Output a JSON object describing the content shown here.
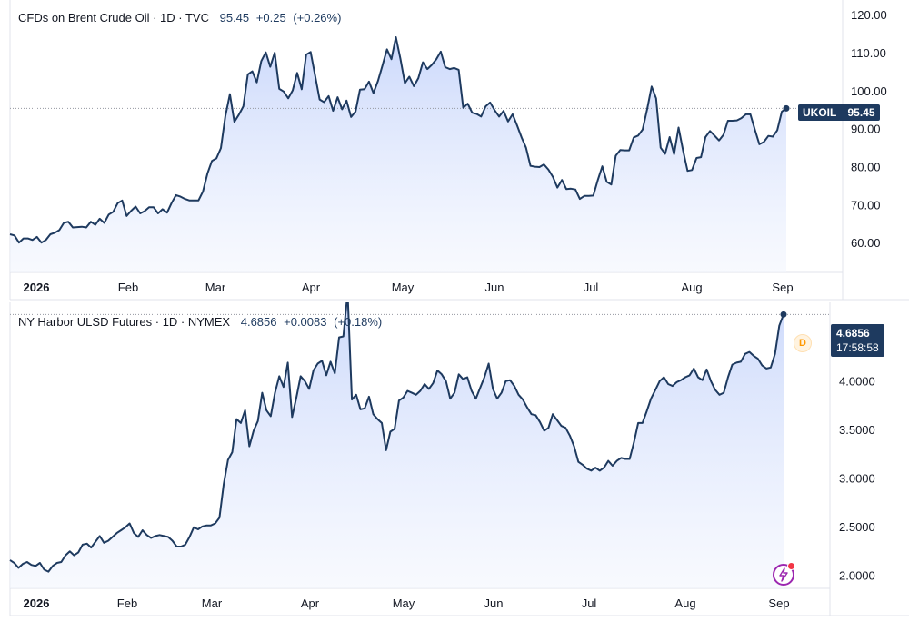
{
  "colors": {
    "line": "#1e3a5f",
    "fill_top": "#c9d7fb",
    "fill_bottom": "#f3f6fe",
    "axis_text": "#131722",
    "border": "#e0e3eb",
    "dotted": "#9598a1",
    "d_badge": "#ff9800",
    "bolt": "#9c27b0"
  },
  "pane1": {
    "legend": {
      "symbol": "CFDs on Brent Crude Oil · 1D · TVC",
      "value": "95.45",
      "change": "+0.25",
      "percent": "(+0.26%)"
    },
    "badge_label": "UKOIL",
    "badge_value": "95.45",
    "chart_data": {
      "type": "area",
      "title": "CFDs on Brent Crude Oil · 1D · TVC",
      "x_ticks": [
        "2026",
        "Feb",
        "Mar",
        "Apr",
        "May",
        "Jun",
        "Jul",
        "Aug",
        "Sep"
      ],
      "y_ticks": [
        "60.00",
        "70.00",
        "80.00",
        "90.00",
        "100.00",
        "110.00",
        "120.00"
      ],
      "ylim": [
        52.5,
        124
      ],
      "last_value": 95.45,
      "series": [
        {
          "values": [
            62.3,
            62.0,
            60.1,
            61.2,
            61.2,
            60.8,
            61.6,
            60.1,
            60.8,
            62.3,
            62.7,
            63.4,
            65.3,
            65.6,
            64.1,
            64.2,
            64.3,
            64.1,
            65.6,
            64.8,
            66.4,
            65.3,
            67.5,
            68.2,
            70.5,
            71.2,
            67.1,
            68.5,
            69.6,
            67.8,
            68.4,
            69.4,
            69.4,
            67.8,
            68.9,
            68.0,
            70.5,
            72.6,
            72.2,
            71.6,
            71.2,
            71.2,
            71.2,
            73.6,
            78.3,
            81.6,
            82.3,
            85.0,
            93.4,
            99.2,
            91.9,
            93.8,
            96.0,
            104.4,
            105.2,
            102.3,
            107.9,
            110.2,
            106.4,
            110.1,
            100.6,
            99.9,
            98.1,
            100.2,
            104.8,
            100.5,
            109.6,
            110.3,
            104.0,
            97.8,
            97.1,
            98.7,
            94.8,
            98.4,
            95.2,
            97.5,
            93.2,
            94.6,
            100.4,
            100.5,
            102.5,
            99.5,
            102.7,
            106.7,
            111.0,
            108.4,
            114.2,
            108.5,
            102.1,
            103.8,
            101.3,
            103.4,
            107.6,
            105.8,
            106.9,
            108.4,
            110.4,
            106.3,
            105.8,
            106.1,
            105.6,
            95.6,
            96.7,
            94.3,
            94.0,
            93.3,
            96.0,
            97.0,
            95.0,
            93.3,
            94.8,
            92.0,
            93.9,
            91.0,
            87.8,
            85.1,
            80.3,
            80.1,
            80.0,
            80.7,
            79.3,
            77.4,
            74.6,
            76.6,
            74.2,
            74.3,
            74.1,
            71.6,
            72.4,
            72.4,
            72.5,
            76.6,
            80.2,
            76.1,
            75.4,
            83.0,
            84.5,
            84.4,
            84.4,
            87.8,
            88.3,
            89.9,
            95.3,
            101.2,
            98.1,
            85.1,
            83.5,
            87.9,
            83.4,
            90.4,
            84.3,
            79.0,
            79.2,
            82.4,
            82.6,
            87.9,
            89.5,
            88.3,
            87.0,
            88.5,
            92.2,
            92.2,
            92.3,
            92.9,
            93.9,
            93.9,
            89.9,
            86.0,
            86.6,
            88.2,
            88.0,
            89.7,
            94.6,
            95.45
          ]
        }
      ]
    }
  },
  "pane2": {
    "legend": {
      "symbol": "NY Harbor ULSD Futures · 1D · NYMEX",
      "value": "4.6856",
      "change": "+0.0083",
      "percent": "(+0.18%)"
    },
    "badge_value": "4.6856",
    "badge_time": "17:58:58",
    "d_label": "D",
    "chart_data": {
      "type": "area",
      "title": "NY Harbor ULSD Futures · 1D · NYMEX",
      "x_ticks": [
        "2026",
        "Feb",
        "Mar",
        "Apr",
        "May",
        "Jun",
        "Jul",
        "Aug",
        "Sep"
      ],
      "y_ticks": [
        "2.0000",
        "2.5000",
        "3.0000",
        "3.5000",
        "4.0000"
      ],
      "ylim": [
        1.87,
        4.81
      ],
      "last_value": 4.6856,
      "series": [
        {
          "values": [
            2.16,
            2.13,
            2.081,
            2.121,
            2.141,
            2.111,
            2.101,
            2.131,
            2.062,
            2.042,
            2.101,
            2.131,
            2.141,
            2.21,
            2.25,
            2.21,
            2.24,
            2.319,
            2.329,
            2.289,
            2.349,
            2.408,
            2.339,
            2.359,
            2.398,
            2.438,
            2.467,
            2.497,
            2.537,
            2.438,
            2.398,
            2.467,
            2.418,
            2.388,
            2.408,
            2.418,
            2.408,
            2.398,
            2.359,
            2.299,
            2.299,
            2.319,
            2.398,
            2.497,
            2.477,
            2.507,
            2.517,
            2.517,
            2.537,
            2.596,
            2.941,
            3.19,
            3.27,
            3.61,
            3.57,
            3.7,
            3.33,
            3.49,
            3.59,
            3.88,
            3.7,
            3.64,
            3.88,
            4.05,
            3.94,
            4.19,
            3.63,
            3.83,
            4.05,
            4.0,
            3.92,
            4.11,
            4.18,
            4.21,
            4.06,
            4.2,
            4.08,
            4.45,
            4.46,
            4.91,
            3.81,
            3.86,
            3.71,
            3.72,
            3.84,
            3.66,
            3.61,
            3.57,
            3.29,
            3.48,
            3.51,
            3.8,
            3.83,
            3.9,
            3.88,
            3.86,
            3.9,
            3.97,
            3.92,
            3.98,
            4.11,
            4.07,
            4.0,
            3.82,
            3.88,
            4.07,
            4.02,
            4.04,
            3.9,
            3.82,
            3.93,
            4.04,
            4.18,
            3.92,
            3.82,
            3.88,
            4.0,
            4.01,
            3.95,
            3.86,
            3.81,
            3.73,
            3.66,
            3.65,
            3.58,
            3.49,
            3.52,
            3.66,
            3.6,
            3.54,
            3.52,
            3.44,
            3.33,
            3.17,
            3.14,
            3.1,
            3.08,
            3.11,
            3.08,
            3.11,
            3.18,
            3.13,
            3.18,
            3.21,
            3.2,
            3.2,
            3.37,
            3.57,
            3.57,
            3.69,
            3.82,
            3.91,
            4.0,
            4.04,
            3.97,
            3.95,
            3.99,
            4.01,
            4.04,
            4.06,
            4.13,
            4.04,
            4.01,
            4.12,
            4.0,
            3.91,
            3.86,
            3.88,
            4.04,
            4.17,
            4.19,
            4.2,
            4.28,
            4.3,
            4.26,
            4.23,
            4.16,
            4.13,
            4.14,
            4.28,
            4.57,
            4.6856
          ]
        }
      ]
    }
  }
}
